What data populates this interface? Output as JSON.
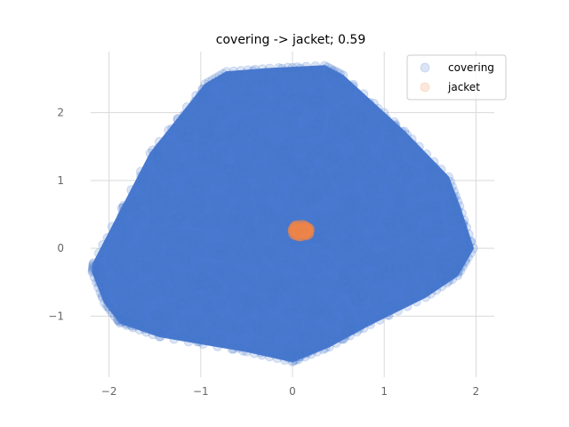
{
  "chart_data": {
    "type": "scatter",
    "title": "covering -> jacket; 0.59",
    "xlabel": "",
    "ylabel": "",
    "xlim": [
      -2.2,
      2.2
    ],
    "ylim": [
      -1.9,
      2.9
    ],
    "x_ticks": [
      -2,
      -1,
      0,
      1,
      2
    ],
    "x_tick_labels": [
      "−2",
      "−1",
      "0",
      "1",
      "2"
    ],
    "y_ticks": [
      -1,
      0,
      1,
      2
    ],
    "y_tick_labels": [
      "−1",
      "0",
      "1",
      "2"
    ],
    "grid": true,
    "legend_position": "top-right",
    "series": [
      {
        "name": "covering",
        "color": "#4878cf",
        "opacity": 0.2,
        "hull": [
          [
            -2.17,
            -0.22
          ],
          [
            -2.18,
            -0.35
          ],
          [
            -2.05,
            -0.8
          ],
          [
            -1.88,
            -1.1
          ],
          [
            -1.45,
            -1.3
          ],
          [
            -0.5,
            -1.52
          ],
          [
            0.0,
            -1.67
          ],
          [
            0.4,
            -1.45
          ],
          [
            0.85,
            -1.12
          ],
          [
            1.45,
            -0.72
          ],
          [
            1.8,
            -0.4
          ],
          [
            1.97,
            0.0
          ],
          [
            1.82,
            0.62
          ],
          [
            1.7,
            1.05
          ],
          [
            1.22,
            1.72
          ],
          [
            0.55,
            2.55
          ],
          [
            0.35,
            2.69
          ],
          [
            -0.25,
            2.65
          ],
          [
            -0.72,
            2.6
          ],
          [
            -0.95,
            2.42
          ],
          [
            -1.55,
            1.4
          ]
        ]
      },
      {
        "name": "jacket",
        "color": "#ee854a",
        "opacity": 0.2,
        "hull": [
          [
            0.0,
            0.28
          ],
          [
            0.01,
            0.2
          ],
          [
            0.08,
            0.17
          ],
          [
            0.18,
            0.2
          ],
          [
            0.19,
            0.29
          ],
          [
            0.12,
            0.35
          ],
          [
            0.03,
            0.34
          ]
        ]
      }
    ]
  }
}
